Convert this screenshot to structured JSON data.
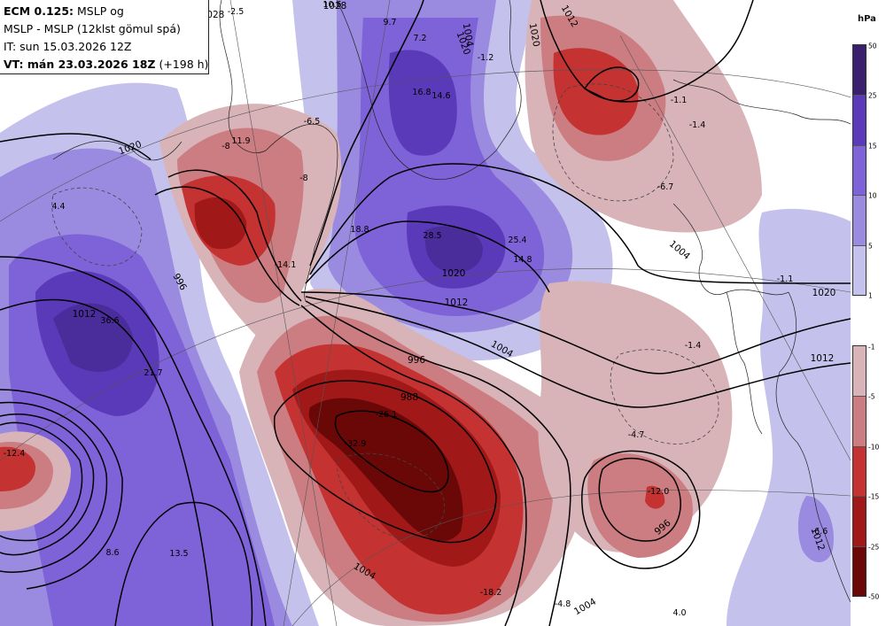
{
  "header": {
    "line1_bold": "ECM 0.125:",
    "line1_rest": " MSLP og",
    "line2": "MSLP - MSLP (12klst gömul spá)",
    "line3": "IT: sun 15.03.2026 12Z",
    "line4_bold": "VT: mán 23.03.2026 18Z",
    "line4_rest": " (+198 h)"
  },
  "legend": {
    "unit": "hPa",
    "positive": [
      {
        "label": "50",
        "color": "#3a1f6e"
      },
      {
        "label": "25",
        "color": "#5a3ab8"
      },
      {
        "label": "15",
        "color": "#7e62d8"
      },
      {
        "label": "10",
        "color": "#9a8be0"
      },
      {
        "label": "5",
        "color": "#c4c2ec"
      }
    ],
    "positive_bottom_label": "1",
    "negative": [
      {
        "label": "-1",
        "color": "#d8b4b8"
      },
      {
        "label": "-5",
        "color": "#cc7d82"
      },
      {
        "label": "-10",
        "color": "#c43232"
      },
      {
        "label": "-15",
        "color": "#a01818"
      },
      {
        "label": "-25",
        "color": "#6a0808"
      }
    ],
    "negative_bottom_label": "-50"
  },
  "isobars": [
    "1020",
    "1012",
    "1020",
    "1012",
    "1004",
    "996",
    "988",
    "1004",
    "996",
    "1004",
    "1020",
    "1012",
    "1028",
    "1028",
    "1020",
    "1012",
    "1004",
    "996",
    "1004",
    "1012",
    "1020"
  ],
  "diff_labels": [
    "-2.5",
    "10.6",
    "9.7",
    "7.2",
    "-1.2",
    "-1.1",
    "-1.4",
    "-6.5",
    "-8",
    "11.9",
    "-8",
    "16.8",
    "14.6",
    "4.4",
    "-12.4",
    "18.8",
    "28.5",
    "25.4",
    "14.8",
    "-14.1",
    "36.6",
    "21.7",
    "-26.1",
    "-32.9",
    "-6.7",
    "-1.1",
    "-1.4",
    "-4.7",
    "-12.0",
    "8.6",
    "13.5",
    "-18.2",
    "-4.8",
    "4.0",
    "-6.6"
  ]
}
